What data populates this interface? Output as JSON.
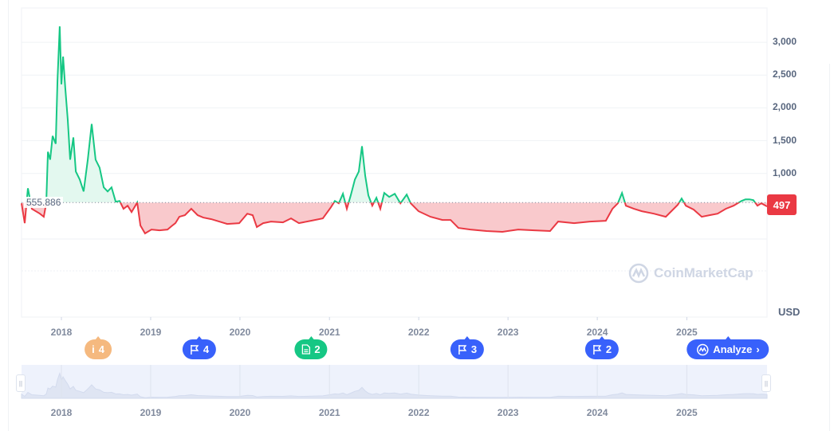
{
  "colors": {
    "up": "#16c784",
    "down": "#ea3943",
    "up_fill": "#e3f8ef",
    "down_fill": "#f9c9cc",
    "accent": "#3861fb",
    "grid": "#eff2f5"
  },
  "chart_data": {
    "type": "line",
    "xlabel": "",
    "ylabel": "",
    "currency_label": "USD",
    "ylim": [
      0,
      3500
    ],
    "y_ticks": [
      "1,000",
      "1,500",
      "2,000",
      "2,500",
      "3,000"
    ],
    "y_tick_values": [
      1000,
      1500,
      2000,
      2500,
      3000
    ],
    "x_ticks": [
      "2018",
      "2019",
      "2020",
      "2021",
      "2022",
      "2023",
      "2024",
      "2025"
    ],
    "baseline": 555.886,
    "baseline_label": "555.886",
    "current_price_label": "497",
    "grid": true,
    "series": [
      {
        "points": [
          [
            "2017-07-22",
            545
          ],
          [
            "2017-08-04",
            242
          ],
          [
            "2017-08-17",
            774
          ],
          [
            "2017-09-02",
            460
          ],
          [
            "2017-10-05",
            387
          ],
          [
            "2017-10-21",
            339
          ],
          [
            "2017-10-31",
            545
          ],
          [
            "2017-11-07",
            1331
          ],
          [
            "2017-11-16",
            1210
          ],
          [
            "2017-11-26",
            1573
          ],
          [
            "2017-12-09",
            1452
          ],
          [
            "2017-12-16",
            2420
          ],
          [
            "2017-12-25",
            3243
          ],
          [
            "2018-01-01",
            2360
          ],
          [
            "2018-01-08",
            2783
          ],
          [
            "2018-01-17",
            2299
          ],
          [
            "2018-01-27",
            1815
          ],
          [
            "2018-02-06",
            1210
          ],
          [
            "2018-02-19",
            1549
          ],
          [
            "2018-03-01",
            1029
          ],
          [
            "2018-03-17",
            908
          ],
          [
            "2018-04-02",
            726
          ],
          [
            "2018-04-19",
            1210
          ],
          [
            "2018-05-05",
            1755
          ],
          [
            "2018-05-21",
            1210
          ],
          [
            "2018-06-06",
            1089
          ],
          [
            "2018-06-23",
            787
          ],
          [
            "2018-07-09",
            726
          ],
          [
            "2018-07-25",
            787
          ],
          [
            "2018-08-11",
            569
          ],
          [
            "2018-08-27",
            581
          ],
          [
            "2018-09-12",
            460
          ],
          [
            "2018-09-29",
            508
          ],
          [
            "2018-10-15",
            411
          ],
          [
            "2018-11-07",
            557
          ],
          [
            "2018-11-20",
            206
          ],
          [
            "2018-12-09",
            85
          ],
          [
            "2019-01-04",
            145
          ],
          [
            "2019-02-06",
            133
          ],
          [
            "2019-03-11",
            145
          ],
          [
            "2019-03-27",
            194
          ],
          [
            "2019-04-12",
            242
          ],
          [
            "2019-04-28",
            339
          ],
          [
            "2019-05-21",
            363
          ],
          [
            "2019-06-16",
            460
          ],
          [
            "2019-07-12",
            363
          ],
          [
            "2019-08-04",
            327
          ],
          [
            "2019-09-06",
            303
          ],
          [
            "2019-10-08",
            266
          ],
          [
            "2019-11-10",
            230
          ],
          [
            "2019-12-29",
            242
          ],
          [
            "2020-01-31",
            387
          ],
          [
            "2020-02-22",
            363
          ],
          [
            "2020-03-10",
            182
          ],
          [
            "2020-04-05",
            242
          ],
          [
            "2020-05-07",
            266
          ],
          [
            "2020-06-25",
            254
          ],
          [
            "2020-07-28",
            315
          ],
          [
            "2020-08-29",
            242
          ],
          [
            "2020-10-17",
            278
          ],
          [
            "2020-12-05",
            315
          ],
          [
            "2021-01-07",
            484
          ],
          [
            "2021-01-23",
            581
          ],
          [
            "2021-02-08",
            545
          ],
          [
            "2021-02-25",
            690
          ],
          [
            "2021-03-13",
            460
          ],
          [
            "2021-03-29",
            666
          ],
          [
            "2021-04-15",
            908
          ],
          [
            "2021-05-01",
            1029
          ],
          [
            "2021-05-14",
            1416
          ],
          [
            "2021-05-27",
            968
          ],
          [
            "2021-06-09",
            666
          ],
          [
            "2021-06-25",
            508
          ],
          [
            "2021-07-12",
            629
          ],
          [
            "2021-07-28",
            460
          ],
          [
            "2021-08-13",
            702
          ],
          [
            "2021-09-02",
            642
          ],
          [
            "2021-09-25",
            690
          ],
          [
            "2021-10-18",
            545
          ],
          [
            "2021-11-13",
            678
          ],
          [
            "2021-11-29",
            545
          ],
          [
            "2021-12-31",
            424
          ],
          [
            "2022-02-18",
            339
          ],
          [
            "2022-04-08",
            290
          ],
          [
            "2022-05-11",
            290
          ],
          [
            "2022-06-12",
            169
          ],
          [
            "2022-07-31",
            145
          ],
          [
            "2022-10-05",
            121
          ],
          [
            "2022-12-09",
            109
          ],
          [
            "2023-02-12",
            145
          ],
          [
            "2023-04-18",
            133
          ],
          [
            "2023-06-22",
            121
          ],
          [
            "2023-07-25",
            266
          ],
          [
            "2023-09-28",
            242
          ],
          [
            "2023-12-02",
            266
          ],
          [
            "2024-02-05",
            278
          ],
          [
            "2024-03-03",
            460
          ],
          [
            "2024-03-25",
            545
          ],
          [
            "2024-04-11",
            702
          ],
          [
            "2024-04-27",
            508
          ],
          [
            "2024-05-30",
            460
          ],
          [
            "2024-07-01",
            424
          ],
          [
            "2024-08-19",
            387
          ],
          [
            "2024-10-07",
            339
          ],
          [
            "2024-11-25",
            521
          ],
          [
            "2024-12-11",
            617
          ],
          [
            "2024-12-28",
            508
          ],
          [
            "2025-01-29",
            448
          ],
          [
            "2025-03-03",
            339
          ],
          [
            "2025-04-04",
            363
          ],
          [
            "2025-05-07",
            387
          ],
          [
            "2025-06-09",
            460
          ],
          [
            "2025-07-11",
            508
          ],
          [
            "2025-08-13",
            581
          ],
          [
            "2025-08-29",
            605
          ],
          [
            "2025-09-14",
            605
          ],
          [
            "2025-09-30",
            593
          ],
          [
            "2025-10-17",
            508
          ],
          [
            "2025-11-02",
            545
          ],
          [
            "2025-11-25",
            497
          ]
        ]
      }
    ]
  },
  "events": [
    {
      "type": "info",
      "icon": "info-icon",
      "count": "4",
      "color": "orange"
    },
    {
      "type": "flag",
      "icon": "flag-icon",
      "count": "4",
      "color": "blue"
    },
    {
      "type": "news",
      "icon": "document-icon",
      "count": "2",
      "color": "green"
    },
    {
      "type": "flag",
      "icon": "flag-icon",
      "count": "3",
      "color": "blue"
    },
    {
      "type": "flag",
      "icon": "flag-icon",
      "count": "2",
      "color": "blue"
    }
  ],
  "analyze_label": "Analyze",
  "watermark": "CoinMarketCap"
}
